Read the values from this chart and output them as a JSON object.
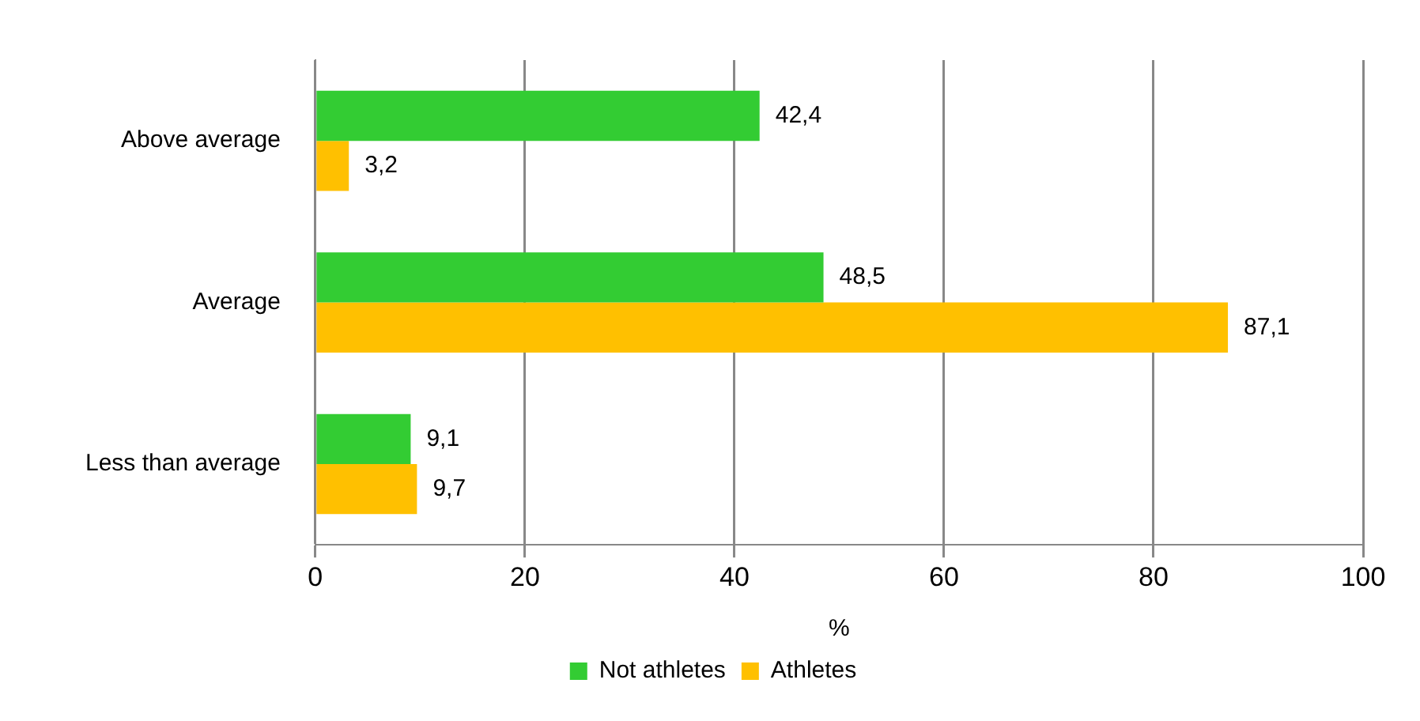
{
  "chart_data": {
    "type": "bar",
    "orientation": "horizontal",
    "categories": [
      "Above average",
      "Average",
      "Less than average"
    ],
    "xlabel": "%",
    "xlim": [
      0,
      100
    ],
    "xticks": [
      0,
      20,
      40,
      60,
      80,
      100
    ],
    "grid": "x",
    "legend": "bottom",
    "series": [
      {
        "name": "Not athletes",
        "color": "#33cc33",
        "values": [
          42.4,
          48.5,
          9.1
        ],
        "value_labels": [
          "42,4",
          "48,5",
          "9,1"
        ]
      },
      {
        "name": "Athletes",
        "color": "#ffc000",
        "values": [
          3.2,
          87.1,
          9.7
        ],
        "value_labels": [
          "3,2",
          "87,1",
          "9,7"
        ]
      }
    ]
  }
}
